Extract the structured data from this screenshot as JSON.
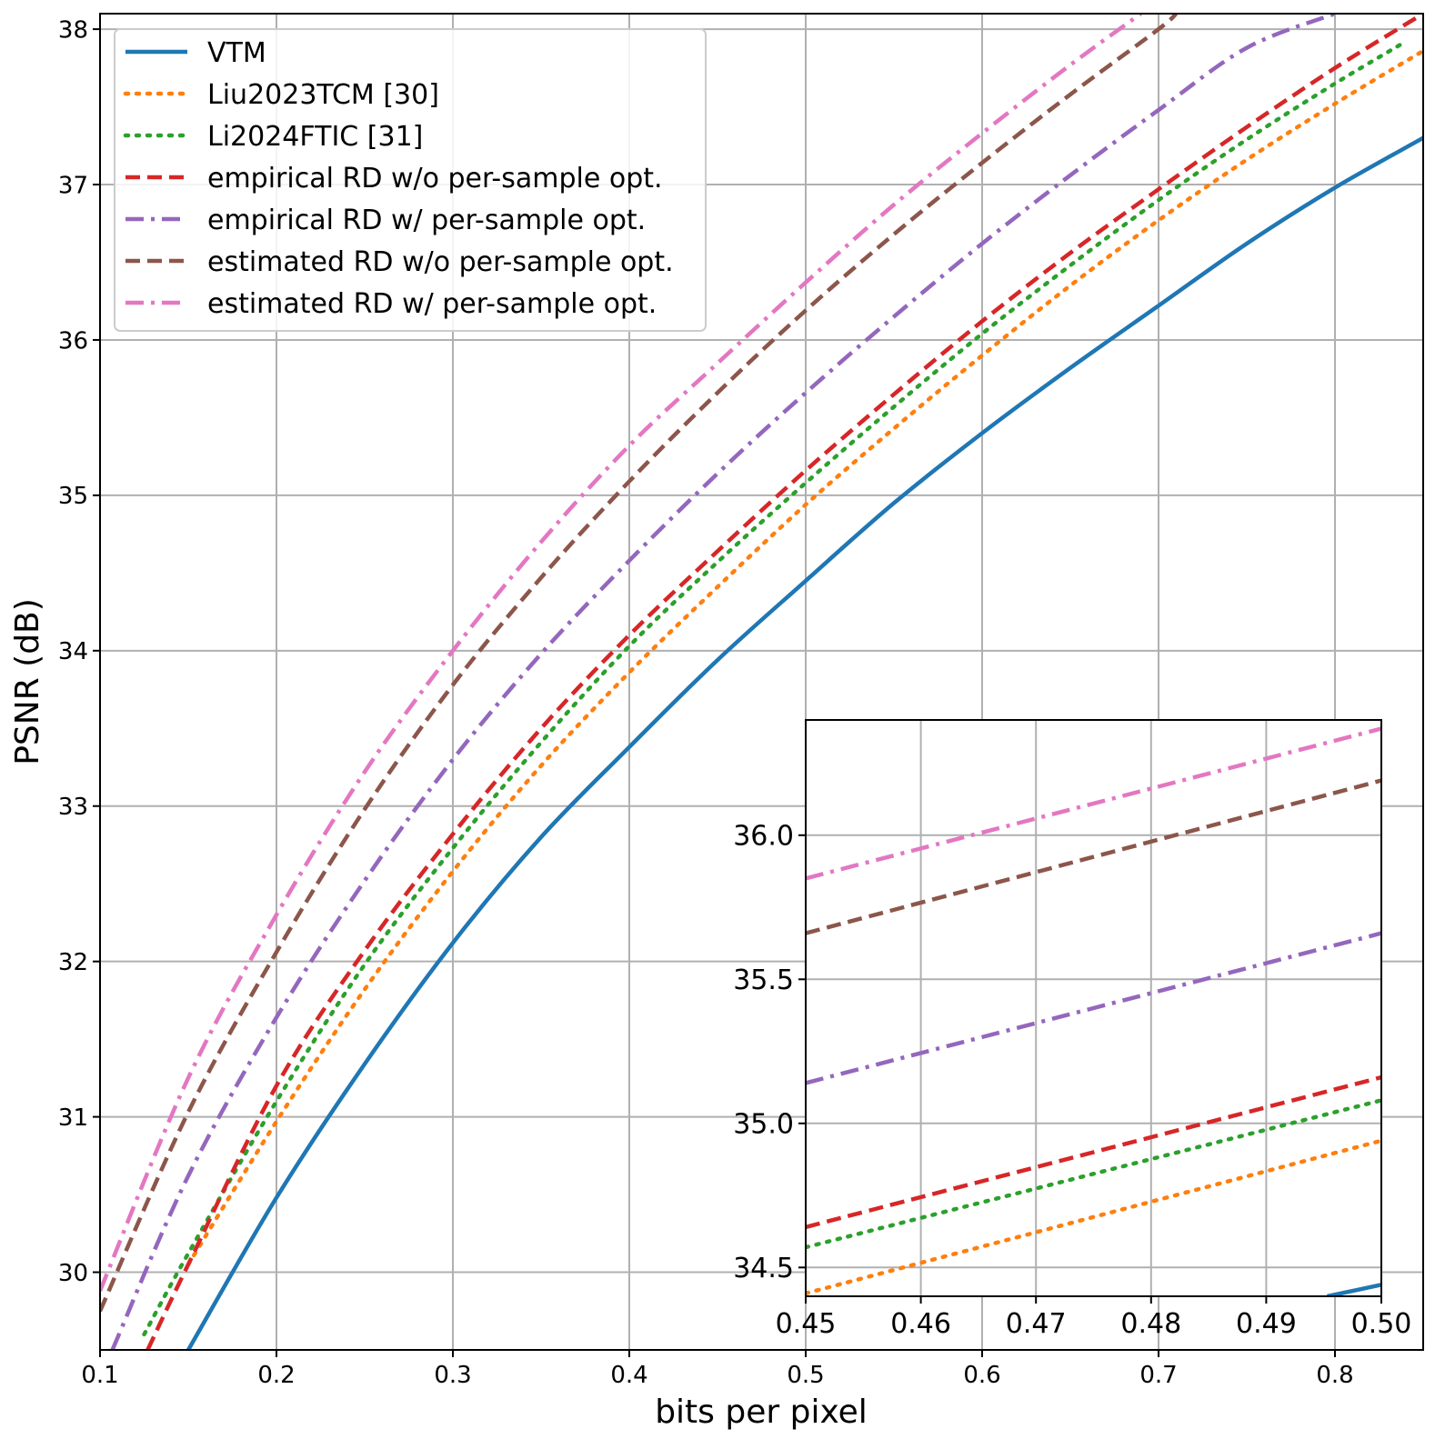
{
  "chart_data": [
    {
      "type": "line",
      "role": "main",
      "xlabel": "bits per pixel",
      "ylabel": "PSNR (dB)",
      "xlim": [
        0.1,
        0.85
      ],
      "ylim": [
        29.5,
        38.1
      ],
      "xticks": [
        0.1,
        0.2,
        0.3,
        0.4,
        0.5,
        0.6,
        0.7,
        0.8
      ],
      "xtick_labels": [
        "0.1",
        "0.2",
        "0.3",
        "0.4",
        "0.5",
        "0.6",
        "0.7",
        "0.8"
      ],
      "yticks": [
        30,
        31,
        32,
        33,
        34,
        35,
        36,
        37,
        38
      ],
      "ytick_labels": [
        "30",
        "31",
        "32",
        "33",
        "34",
        "35",
        "36",
        "37",
        "38"
      ],
      "grid": true,
      "legend_position": "top-left",
      "series": [
        {
          "name": "VTM",
          "color": "#1f77b4",
          "style": "solid",
          "x": [
            0.15,
            0.2,
            0.25,
            0.3,
            0.35,
            0.4,
            0.45,
            0.5,
            0.55,
            0.6,
            0.65,
            0.7,
            0.75,
            0.8,
            0.85
          ],
          "y": [
            29.5,
            30.48,
            31.34,
            32.12,
            32.8,
            33.38,
            33.94,
            34.45,
            34.95,
            35.4,
            35.82,
            36.22,
            36.62,
            36.98,
            37.3
          ]
        },
        {
          "name": "Liu2023TCM [30]",
          "color": "#ff7f0e",
          "style": "dotted",
          "x": [
            0.15,
            0.2,
            0.25,
            0.3,
            0.35,
            0.4,
            0.45,
            0.5,
            0.55,
            0.6,
            0.65,
            0.7,
            0.75,
            0.8,
            0.85
          ],
          "y": [
            30.05,
            30.97,
            31.82,
            32.58,
            33.26,
            33.86,
            34.41,
            34.94,
            35.43,
            35.9,
            36.35,
            36.77,
            37.16,
            37.52,
            37.86
          ]
        },
        {
          "name": "Li2024FTIC [31]",
          "color": "#2ca02c",
          "style": "dotted",
          "x": [
            0.125,
            0.15,
            0.2,
            0.25,
            0.3,
            0.35,
            0.4,
            0.45,
            0.5,
            0.55,
            0.6,
            0.65,
            0.7,
            0.75,
            0.8,
            0.84
          ],
          "y": [
            29.6,
            30.12,
            31.1,
            31.98,
            32.73,
            33.41,
            34.03,
            34.57,
            35.08,
            35.57,
            36.04,
            36.48,
            36.9,
            37.29,
            37.65,
            37.92
          ]
        },
        {
          "name": "empirical RD w/o per-sample opt.",
          "color": "#d62728",
          "style": "dashed",
          "x": [
            0.127,
            0.15,
            0.2,
            0.25,
            0.3,
            0.35,
            0.4,
            0.45,
            0.5,
            0.55,
            0.6,
            0.65,
            0.7,
            0.75,
            0.8,
            0.85
          ],
          "y": [
            29.5,
            30.05,
            31.2,
            32.07,
            32.82,
            33.5,
            34.1,
            34.64,
            35.16,
            35.65,
            36.12,
            36.56,
            36.97,
            37.37,
            37.75,
            38.1
          ]
        },
        {
          "name": "empirical RD w/ per-sample opt.",
          "color": "#9467bd",
          "style": "dashdot",
          "x": [
            0.107,
            0.15,
            0.2,
            0.25,
            0.3,
            0.35,
            0.4,
            0.45,
            0.5,
            0.55,
            0.6,
            0.65,
            0.7,
            0.75,
            0.8
          ],
          "y": [
            29.5,
            30.62,
            31.64,
            32.52,
            33.3,
            33.98,
            34.58,
            35.14,
            35.66,
            36.15,
            36.62,
            37.06,
            37.48,
            37.88,
            38.1
          ]
        },
        {
          "name": "estimated RD w/o per-sample opt.",
          "color": "#8c564b",
          "style": "dashed",
          "x": [
            0.1,
            0.15,
            0.2,
            0.25,
            0.3,
            0.35,
            0.4,
            0.45,
            0.5,
            0.55,
            0.6,
            0.65,
            0.7,
            0.71
          ],
          "y": [
            29.75,
            31.03,
            32.06,
            32.98,
            33.78,
            34.47,
            35.09,
            35.66,
            36.19,
            36.68,
            37.14,
            37.58,
            38.0,
            38.1
          ]
        },
        {
          "name": "estimated RD w/ per-sample opt.",
          "color": "#e377c2",
          "style": "dashdot",
          "x": [
            0.1,
            0.15,
            0.2,
            0.25,
            0.3,
            0.35,
            0.4,
            0.45,
            0.5,
            0.55,
            0.6,
            0.65,
            0.69
          ],
          "y": [
            29.88,
            31.25,
            32.3,
            33.22,
            34.0,
            34.7,
            35.32,
            35.85,
            36.37,
            36.87,
            37.33,
            37.77,
            38.1
          ]
        }
      ]
    },
    {
      "type": "line",
      "role": "inset",
      "xlim": [
        0.45,
        0.5
      ],
      "ylim": [
        34.4,
        36.4
      ],
      "xticks": [
        0.45,
        0.46,
        0.47,
        0.48,
        0.49,
        0.5
      ],
      "xtick_labels": [
        "0.45",
        "0.46",
        "0.47",
        "0.48",
        "0.49",
        "0.50"
      ],
      "yticks": [
        34.5,
        35.0,
        35.5,
        36.0
      ],
      "ytick_labels": [
        "34.5",
        "35.0",
        "35.5",
        "36.0"
      ],
      "grid": true,
      "series": [
        {
          "name": "VTM",
          "color": "#1f77b4",
          "style": "solid",
          "x": [
            0.4953,
            0.5
          ],
          "y": [
            34.4,
            34.44
          ]
        },
        {
          "name": "Liu2023TCM [30]",
          "color": "#ff7f0e",
          "style": "dotted",
          "x": [
            0.45,
            0.5
          ],
          "y": [
            34.41,
            34.94
          ]
        },
        {
          "name": "Li2024FTIC [31]",
          "color": "#2ca02c",
          "style": "dotted",
          "x": [
            0.45,
            0.5
          ],
          "y": [
            34.57,
            35.08
          ]
        },
        {
          "name": "empirical RD w/o per-sample opt.",
          "color": "#d62728",
          "style": "dashed",
          "x": [
            0.45,
            0.5
          ],
          "y": [
            34.64,
            35.16
          ]
        },
        {
          "name": "empirical RD w/ per-sample opt.",
          "color": "#9467bd",
          "style": "dashdot",
          "x": [
            0.45,
            0.5
          ],
          "y": [
            35.14,
            35.66
          ]
        },
        {
          "name": "estimated RD w/o per-sample opt.",
          "color": "#8c564b",
          "style": "dashed",
          "x": [
            0.45,
            0.5
          ],
          "y": [
            35.66,
            36.19
          ]
        },
        {
          "name": "estimated RD w/ per-sample opt.",
          "color": "#e377c2",
          "style": "dashdot",
          "x": [
            0.45,
            0.5
          ],
          "y": [
            35.85,
            36.37
          ]
        }
      ]
    }
  ]
}
